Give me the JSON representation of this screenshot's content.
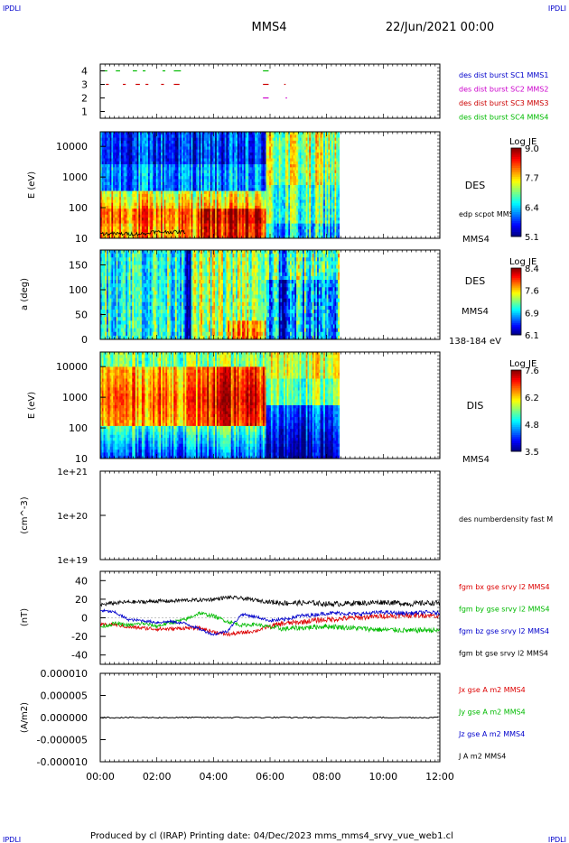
{
  "header": {
    "corner_left": "IPDLI",
    "corner_right": "IPDLI",
    "spacecraft": "MMS4",
    "date": "22/Jun/2021 00:00"
  },
  "footer": {
    "text": "Produced by cl (IRAP)   Printing date: 04/Dec/2023   mms_mms4_srvy_vue_web1.cl",
    "corner_left": "IPDLI",
    "corner_right": "IPDLI"
  },
  "x_axis": {
    "ticks": [
      "00:00",
      "02:00",
      "04:00",
      "06:00",
      "08:00",
      "10:00",
      "12:00"
    ]
  },
  "panels": {
    "burst": {
      "ticks": [
        "4",
        "3",
        "2",
        "1"
      ],
      "legend": [
        {
          "text": "des dist burst SC1 MMS1",
          "color": "#0000cc"
        },
        {
          "text": "des dist burst SC2 MMS2",
          "color": "#cc00cc"
        },
        {
          "text": "des dist burst SC3 MMS3",
          "color": "#cc0000"
        },
        {
          "text": "des dist burst SC4 MMS4",
          "color": "#00bb00"
        }
      ]
    },
    "des_energy": {
      "ylabel": "E (eV)",
      "ticks": [
        "10000",
        "1000",
        "100",
        "10"
      ],
      "label": "DES",
      "sub_label": "MMS4",
      "overlay_label": "edp scpot MMS4",
      "colorbar_title": "Log JE",
      "colorbar_ticks": [
        "9.0",
        "7.7",
        "6.4",
        "5.1"
      ]
    },
    "des_pitch": {
      "ylabel": "a (deg)",
      "ticks": [
        "150",
        "100",
        "50",
        "0"
      ],
      "label": "DES",
      "sub_label": "MMS4",
      "energy_range": "138-184 eV",
      "colorbar_title": "Log JE",
      "colorbar_ticks": [
        "8.4",
        "7.6",
        "6.9",
        "6.1"
      ]
    },
    "dis_energy": {
      "ylabel": "E (eV)",
      "ticks": [
        "10000",
        "1000",
        "100",
        "10"
      ],
      "label": "DIS",
      "sub_label": "MMS4",
      "colorbar_title": "Log JE",
      "colorbar_ticks": [
        "7.6",
        "6.2",
        "4.8",
        "3.5"
      ]
    },
    "density": {
      "ylabel": "(cm^-3)",
      "ticks": [
        "1e+21",
        "1e+20",
        "1e+19"
      ],
      "legend": "des numberdensity fast M"
    },
    "fgm": {
      "ylabel": "(nT)",
      "ticks": [
        "40",
        "20",
        "0",
        "-20",
        "-40"
      ],
      "legend": [
        {
          "text": "fgm bx gse srvy l2 MMS4",
          "color": "#dd0000"
        },
        {
          "text": "fgm by gse srvy l2 MMS4",
          "color": "#00bb00"
        },
        {
          "text": "fgm bz gse srvy l2 MMS4",
          "color": "#0000cc"
        },
        {
          "text": "fgm bt gse srvy l2 MMS4",
          "color": "#000000"
        }
      ]
    },
    "current": {
      "ylabel": "(A/m2)",
      "ticks": [
        "0.000010",
        "0.000005",
        "0.000000",
        "-0.000005",
        "-0.000010"
      ],
      "legend": [
        {
          "text": "Jx gse A m2 MMS4",
          "color": "#dd0000"
        },
        {
          "text": "Jy gse A m2 MMS4",
          "color": "#00bb00"
        },
        {
          "text": "Jz gse A m2 MMS4",
          "color": "#0000cc"
        },
        {
          "text": "J A m2 MMS4",
          "color": "#000000"
        }
      ]
    }
  },
  "chart_data": [
    {
      "type": "scatter",
      "name_ref": "burst",
      "x_unit": "hours",
      "xlim": [
        0,
        12
      ],
      "ylim": [
        0.5,
        4.5
      ],
      "segments": [
        {
          "y": 4,
          "color": "#00bb00",
          "x": [
            [
              0.05,
              0.25
            ],
            [
              0.55,
              0.7
            ],
            [
              1.15,
              1.3
            ],
            [
              1.5,
              1.6
            ],
            [
              2.2,
              2.3
            ],
            [
              2.6,
              2.85
            ],
            [
              5.75,
              5.95
            ]
          ]
        },
        {
          "y": 3,
          "color": "#cc0000",
          "x": [
            [
              0.2,
              0.3
            ],
            [
              0.8,
              0.9
            ],
            [
              1.25,
              1.4
            ],
            [
              1.6,
              1.7
            ],
            [
              2.15,
              2.25
            ],
            [
              2.6,
              2.8
            ],
            [
              5.75,
              5.95
            ],
            [
              6.5,
              6.55
            ]
          ]
        },
        {
          "y": 2,
          "color": "#cc00cc",
          "x": [
            [
              5.75,
              5.95
            ],
            [
              6.55,
              6.6
            ]
          ]
        }
      ]
    },
    {
      "type": "heatmap",
      "name_ref": "des_energy",
      "x_unit": "hours",
      "xlim": [
        0,
        12
      ],
      "y_scale": "log",
      "ylim": [
        10,
        30000
      ],
      "data_end_hour": 8.45,
      "color_range": [
        5.1,
        9.0
      ]
    },
    {
      "type": "heatmap",
      "name_ref": "des_pitch",
      "x_unit": "hours",
      "xlim": [
        0,
        12
      ],
      "ylim": [
        0,
        180
      ],
      "data_end_hour": 8.45,
      "color_range": [
        6.1,
        8.4
      ]
    },
    {
      "type": "heatmap",
      "name_ref": "dis_energy",
      "x_unit": "hours",
      "xlim": [
        0,
        12
      ],
      "y_scale": "log",
      "ylim": [
        10,
        30000
      ],
      "data_end_hour": 8.45,
      "color_range": [
        3.5,
        7.6
      ]
    },
    {
      "type": "line",
      "name_ref": "fgm",
      "x_unit": "hours",
      "xlim": [
        0,
        12
      ],
      "ylim": [
        -50,
        50
      ],
      "series": [
        {
          "name": "fgm bt gse srvy l2 MMS4",
          "color": "#000000",
          "x": [
            0,
            0.5,
            1,
            1.5,
            2,
            2.5,
            3,
            3.5,
            4,
            4.5,
            5,
            5.5,
            6,
            6.5,
            7,
            7.5,
            8,
            8.5,
            9,
            9.5,
            10,
            10.5,
            11,
            11.5,
            12
          ],
          "y": [
            14,
            16,
            17,
            17,
            18,
            18,
            19,
            19,
            20,
            22,
            21,
            19,
            17,
            16,
            16,
            16,
            15,
            15,
            16,
            16,
            17,
            16,
            15,
            16,
            16
          ]
        },
        {
          "name": "fgm bx gse srvy l2 MMS4",
          "color": "#dd0000",
          "x": [
            0,
            0.5,
            1,
            1.5,
            2,
            2.5,
            3,
            3.5,
            4,
            4.5,
            5,
            5.5,
            6,
            6.5,
            7,
            7.5,
            8,
            8.5,
            9,
            9.5,
            10,
            10.5,
            11,
            11.5,
            12
          ],
          "y": [
            -8,
            -7,
            -10,
            -11,
            -12,
            -12,
            -11,
            -11,
            -15,
            -18,
            -16,
            -14,
            -9,
            -6,
            -5,
            -3,
            -2,
            -1,
            0,
            1,
            2,
            2,
            3,
            3,
            2
          ]
        },
        {
          "name": "fgm by gse srvy l2 MMS4",
          "color": "#00bb00",
          "x": [
            0,
            0.5,
            1,
            1.5,
            2,
            2.5,
            3,
            3.5,
            4,
            4.5,
            5,
            5.5,
            6,
            6.5,
            7,
            7.5,
            8,
            8.5,
            9,
            9.5,
            10,
            10.5,
            11,
            11.5,
            12
          ],
          "y": [
            -10,
            -6,
            -8,
            -6,
            -9,
            -5,
            -2,
            5,
            2,
            -4,
            -8,
            -7,
            -10,
            -12,
            -11,
            -10,
            -9,
            -10,
            -11,
            -12,
            -13,
            -13,
            -14,
            -13,
            -14
          ]
        },
        {
          "name": "fgm bz gse srvy l2 MMS4",
          "color": "#0000cc",
          "x": [
            0,
            0.5,
            1,
            1.5,
            2,
            2.5,
            3,
            3.5,
            4,
            4.5,
            5,
            5.5,
            6,
            6.5,
            7,
            7.5,
            8,
            8.5,
            9,
            9.5,
            10,
            10.5,
            11,
            11.5,
            12
          ],
          "y": [
            8,
            6,
            -2,
            -3,
            -5,
            -4,
            -6,
            -12,
            -18,
            -14,
            4,
            1,
            -3,
            -2,
            2,
            3,
            5,
            5,
            4,
            5,
            6,
            5,
            5,
            6,
            5
          ]
        }
      ]
    },
    {
      "type": "line",
      "name_ref": "current",
      "x_unit": "hours",
      "xlim": [
        0,
        12
      ],
      "ylim": [
        -1e-05,
        1e-05
      ],
      "series": [
        {
          "name": "J A m2 MMS4",
          "color": "#000000",
          "x": [
            0,
            12
          ],
          "y": [
            0,
            0
          ]
        }
      ]
    }
  ]
}
